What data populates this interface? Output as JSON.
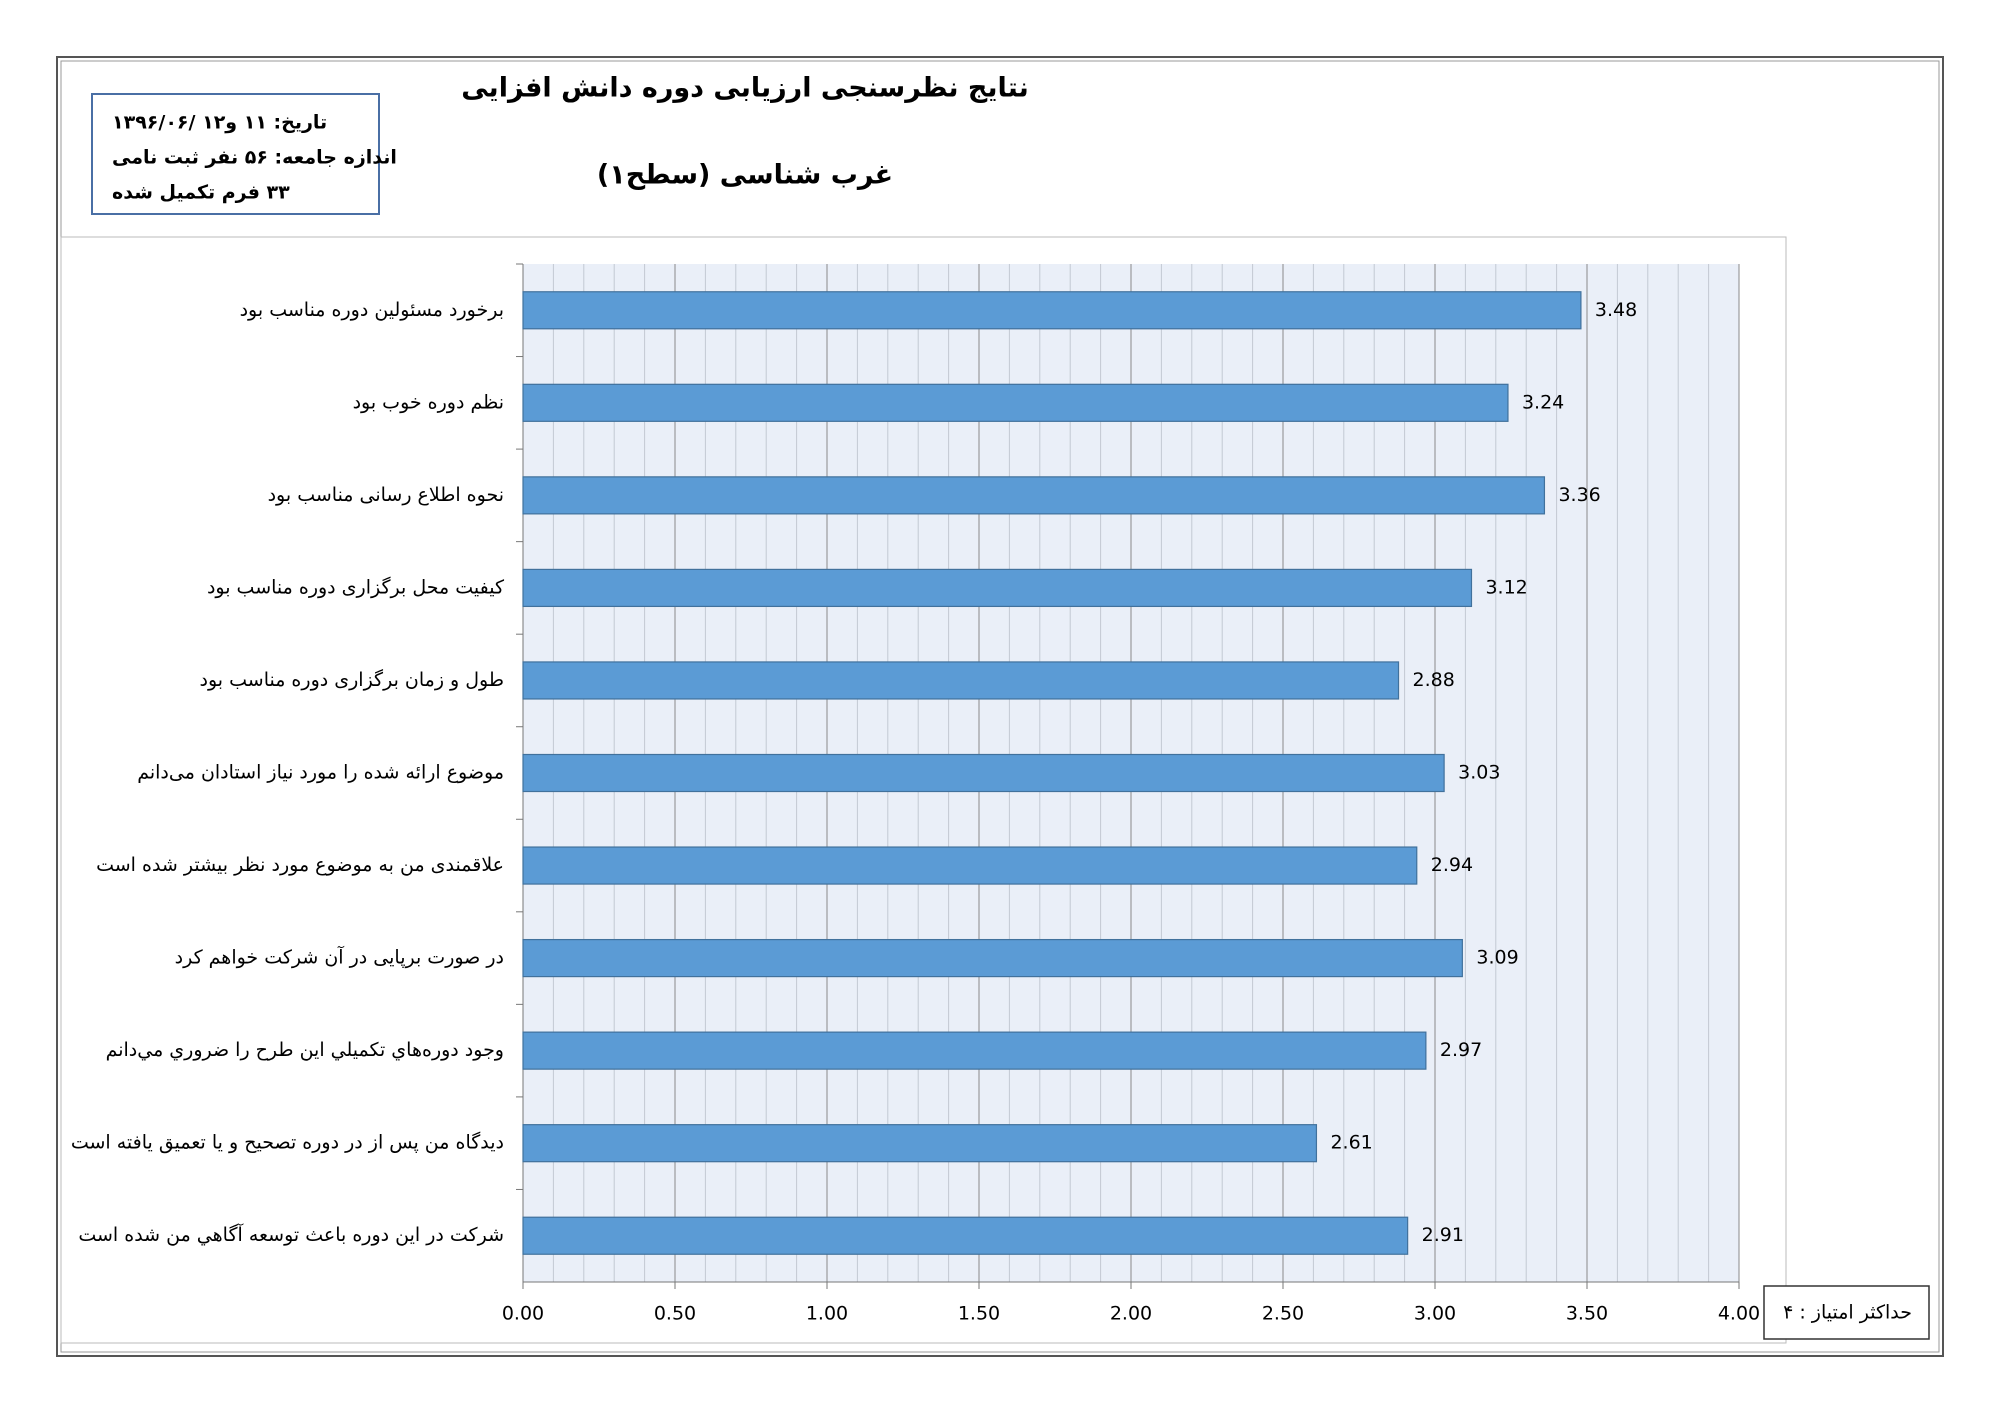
{
  "chart_data": {
    "type": "bar",
    "orientation": "horizontal",
    "title": "نتایج نظرسنجی ارزیابی دوره دانش افزایی",
    "subtitle": "غرب شناسی (سطح۱)",
    "info": [
      "تاریخ: ۱۱ و۱۲ /۱۳۹۶/۰۶",
      "اندازه جامعه: ۵۶ نفر ثبت نامی",
      "۳۳ فرم تکمیل شده"
    ],
    "note": "حداکثر امتیاز : ۴",
    "categories": [
      "برخورد مسئولین دوره مناسب بود",
      "نظم دوره خوب بود",
      "نحوه اطلاع رسانی مناسب بود",
      "کیفیت محل برگزاری دوره  مناسب بود",
      "طول و زمان برگزاری دوره مناسب بود",
      "موضوع ارائه شده را مورد نیاز استادان می‌دانم",
      "علاقمندی من به موضوع مورد نظر بیشتر شده است",
      "در صورت برپایی در آن شرکت خواهم کرد",
      "وجود دوره‌هاي تكميلي اين طرح را ضروري مي‌دانم",
      "دیدگاه من پس از در دوره تصحیح و یا تعمیق یافته است",
      "شرکت در این دوره باعث توسعه آگاهي من شده است"
    ],
    "values": [
      3.48,
      3.24,
      3.36,
      3.12,
      2.88,
      3.03,
      2.94,
      3.09,
      2.97,
      2.61,
      2.91
    ],
    "color": "#5b9bd5",
    "xlim": [
      0,
      4
    ],
    "xticks": [
      {
        "value": 0,
        "label": "0.00"
      },
      {
        "value": 0.5,
        "label": "0.50"
      },
      {
        "value": 1,
        "label": "1.00"
      },
      {
        "value": 1.5,
        "label": "1.50"
      },
      {
        "value": 2,
        "label": "2.00"
      },
      {
        "value": 2.5,
        "label": "2.50"
      },
      {
        "value": 3,
        "label": "3.00"
      },
      {
        "value": 3.5,
        "label": "3.50"
      },
      {
        "value": 4,
        "label": "4.00"
      }
    ],
    "grid": true
  }
}
